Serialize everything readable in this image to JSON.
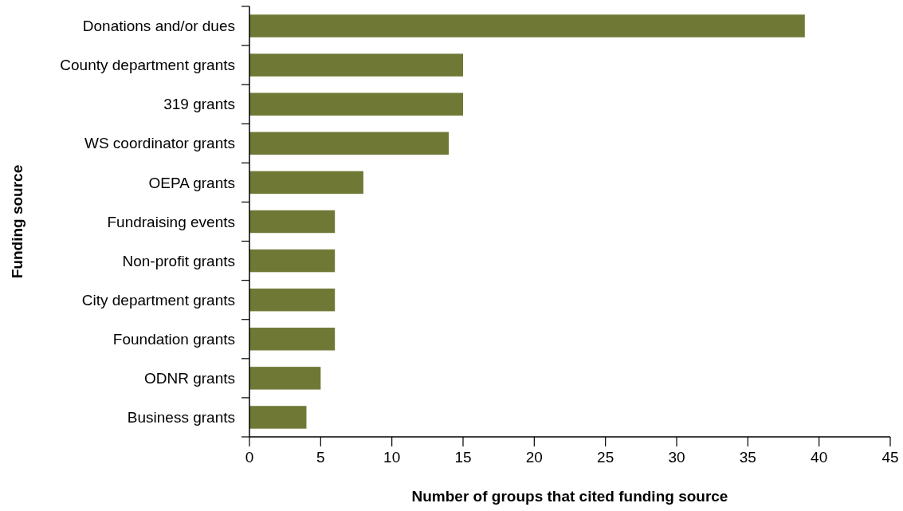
{
  "chart_data": {
    "type": "bar",
    "orientation": "horizontal",
    "xlabel": "Number of groups that cited funding source",
    "ylabel": "Funding source",
    "categories": [
      "Donations and/or dues",
      "County department grants",
      "319 grants",
      "WS coordinator grants",
      "OEPA grants",
      "Fundraising events",
      "Non-profit grants",
      "City department grants",
      "Foundation grants",
      "ODNR grants",
      "Business grants"
    ],
    "values": [
      39,
      15,
      15,
      14,
      8,
      6,
      6,
      6,
      6,
      5,
      4
    ],
    "color": "#707836",
    "xlim": [
      0,
      45
    ],
    "xticks": [
      0,
      5,
      10,
      15,
      20,
      25,
      30,
      35,
      40,
      45
    ],
    "grid": false
  }
}
